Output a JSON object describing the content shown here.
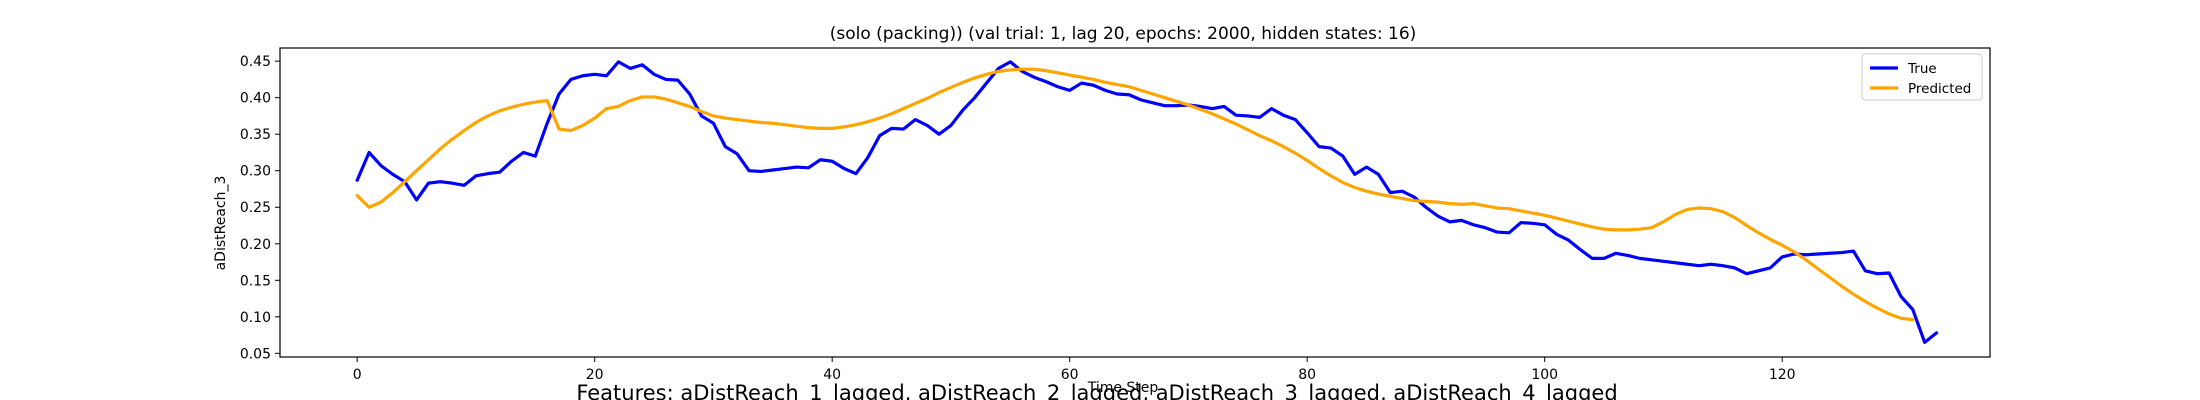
{
  "chart_data": {
    "type": "line",
    "title": "(solo (packing)) (val trial: 1, lag 20, epochs: 2000, hidden states: 16)",
    "xlabel": "Time Step",
    "ylabel": "aDistReach_3",
    "caption": "Features: aDistReach_1_lagged, aDistReach_2_lagged, aDistReach_3_lagged, aDistReach_4_lagged",
    "xlim": [
      -6.5,
      137.5
    ],
    "ylim": [
      0.045,
      0.468
    ],
    "xticks": [
      0,
      20,
      40,
      60,
      80,
      100,
      120
    ],
    "yticks": [
      0.05,
      0.1,
      0.15,
      0.2,
      0.25,
      0.3,
      0.35,
      0.4,
      0.45
    ],
    "ytick_labels": [
      "0.05",
      "0.10",
      "0.15",
      "0.20",
      "0.25",
      "0.30",
      "0.35",
      "0.40",
      "0.45"
    ],
    "grid": false,
    "legend_position": "top-right",
    "series": [
      {
        "name": "True",
        "color": "#0000ff",
        "values": [
          0.287,
          0.325,
          0.307,
          0.295,
          0.285,
          0.26,
          0.283,
          0.285,
          0.283,
          0.28,
          0.293,
          0.296,
          0.298,
          0.313,
          0.325,
          0.32,
          0.365,
          0.405,
          0.425,
          0.43,
          0.432,
          0.43,
          0.449,
          0.44,
          0.445,
          0.432,
          0.425,
          0.424,
          0.405,
          0.375,
          0.365,
          0.333,
          0.323,
          0.3,
          0.299,
          0.301,
          0.303,
          0.305,
          0.304,
          0.315,
          0.313,
          0.303,
          0.296,
          0.318,
          0.348,
          0.358,
          0.357,
          0.37,
          0.362,
          0.35,
          0.362,
          0.383,
          0.4,
          0.42,
          0.44,
          0.449,
          0.436,
          0.428,
          0.422,
          0.415,
          0.41,
          0.42,
          0.417,
          0.41,
          0.405,
          0.404,
          0.397,
          0.393,
          0.389,
          0.389,
          0.39,
          0.388,
          0.385,
          0.388,
          0.376,
          0.375,
          0.373,
          0.385,
          0.376,
          0.37,
          0.352,
          0.333,
          0.331,
          0.32,
          0.295,
          0.305,
          0.295,
          0.27,
          0.272,
          0.264,
          0.25,
          0.238,
          0.23,
          0.232,
          0.226,
          0.222,
          0.216,
          0.215,
          0.229,
          0.228,
          0.226,
          0.213,
          0.205,
          0.192,
          0.18,
          0.18,
          0.187,
          0.184,
          0.18,
          0.178,
          0.176,
          0.174,
          0.172,
          0.17,
          0.172,
          0.17,
          0.167,
          0.159,
          0.163,
          0.167,
          0.182,
          0.186,
          0.185,
          0.186,
          0.187,
          0.188,
          0.19,
          0.163,
          0.159,
          0.16,
          0.128,
          0.11,
          0.065,
          0.078
        ]
      },
      {
        "name": "Predicted",
        "color": "#ffa500",
        "values": [
          0.266,
          0.25,
          0.257,
          0.27,
          0.285,
          0.3,
          0.315,
          0.33,
          0.343,
          0.355,
          0.366,
          0.375,
          0.382,
          0.387,
          0.391,
          0.394,
          0.396,
          0.357,
          0.355,
          0.362,
          0.372,
          0.385,
          0.388,
          0.396,
          0.401,
          0.401,
          0.398,
          0.393,
          0.388,
          0.381,
          0.375,
          0.372,
          0.37,
          0.368,
          0.366,
          0.365,
          0.363,
          0.361,
          0.359,
          0.358,
          0.358,
          0.36,
          0.363,
          0.367,
          0.372,
          0.378,
          0.385,
          0.392,
          0.399,
          0.407,
          0.414,
          0.421,
          0.427,
          0.432,
          0.436,
          0.438,
          0.439,
          0.439,
          0.437,
          0.434,
          0.431,
          0.428,
          0.425,
          0.421,
          0.418,
          0.415,
          0.41,
          0.405,
          0.4,
          0.395,
          0.39,
          0.384,
          0.378,
          0.371,
          0.364,
          0.356,
          0.348,
          0.341,
          0.333,
          0.324,
          0.314,
          0.303,
          0.293,
          0.284,
          0.277,
          0.272,
          0.268,
          0.265,
          0.262,
          0.259,
          0.258,
          0.257,
          0.255,
          0.254,
          0.255,
          0.252,
          0.249,
          0.248,
          0.245,
          0.242,
          0.239,
          0.235,
          0.231,
          0.227,
          0.223,
          0.22,
          0.219,
          0.219,
          0.22,
          0.222,
          0.23,
          0.24,
          0.247,
          0.249,
          0.248,
          0.244,
          0.236,
          0.225,
          0.215,
          0.206,
          0.198,
          0.189,
          0.178,
          0.166,
          0.154,
          0.142,
          0.131,
          0.121,
          0.112,
          0.104,
          0.098,
          0.096
        ]
      }
    ]
  }
}
